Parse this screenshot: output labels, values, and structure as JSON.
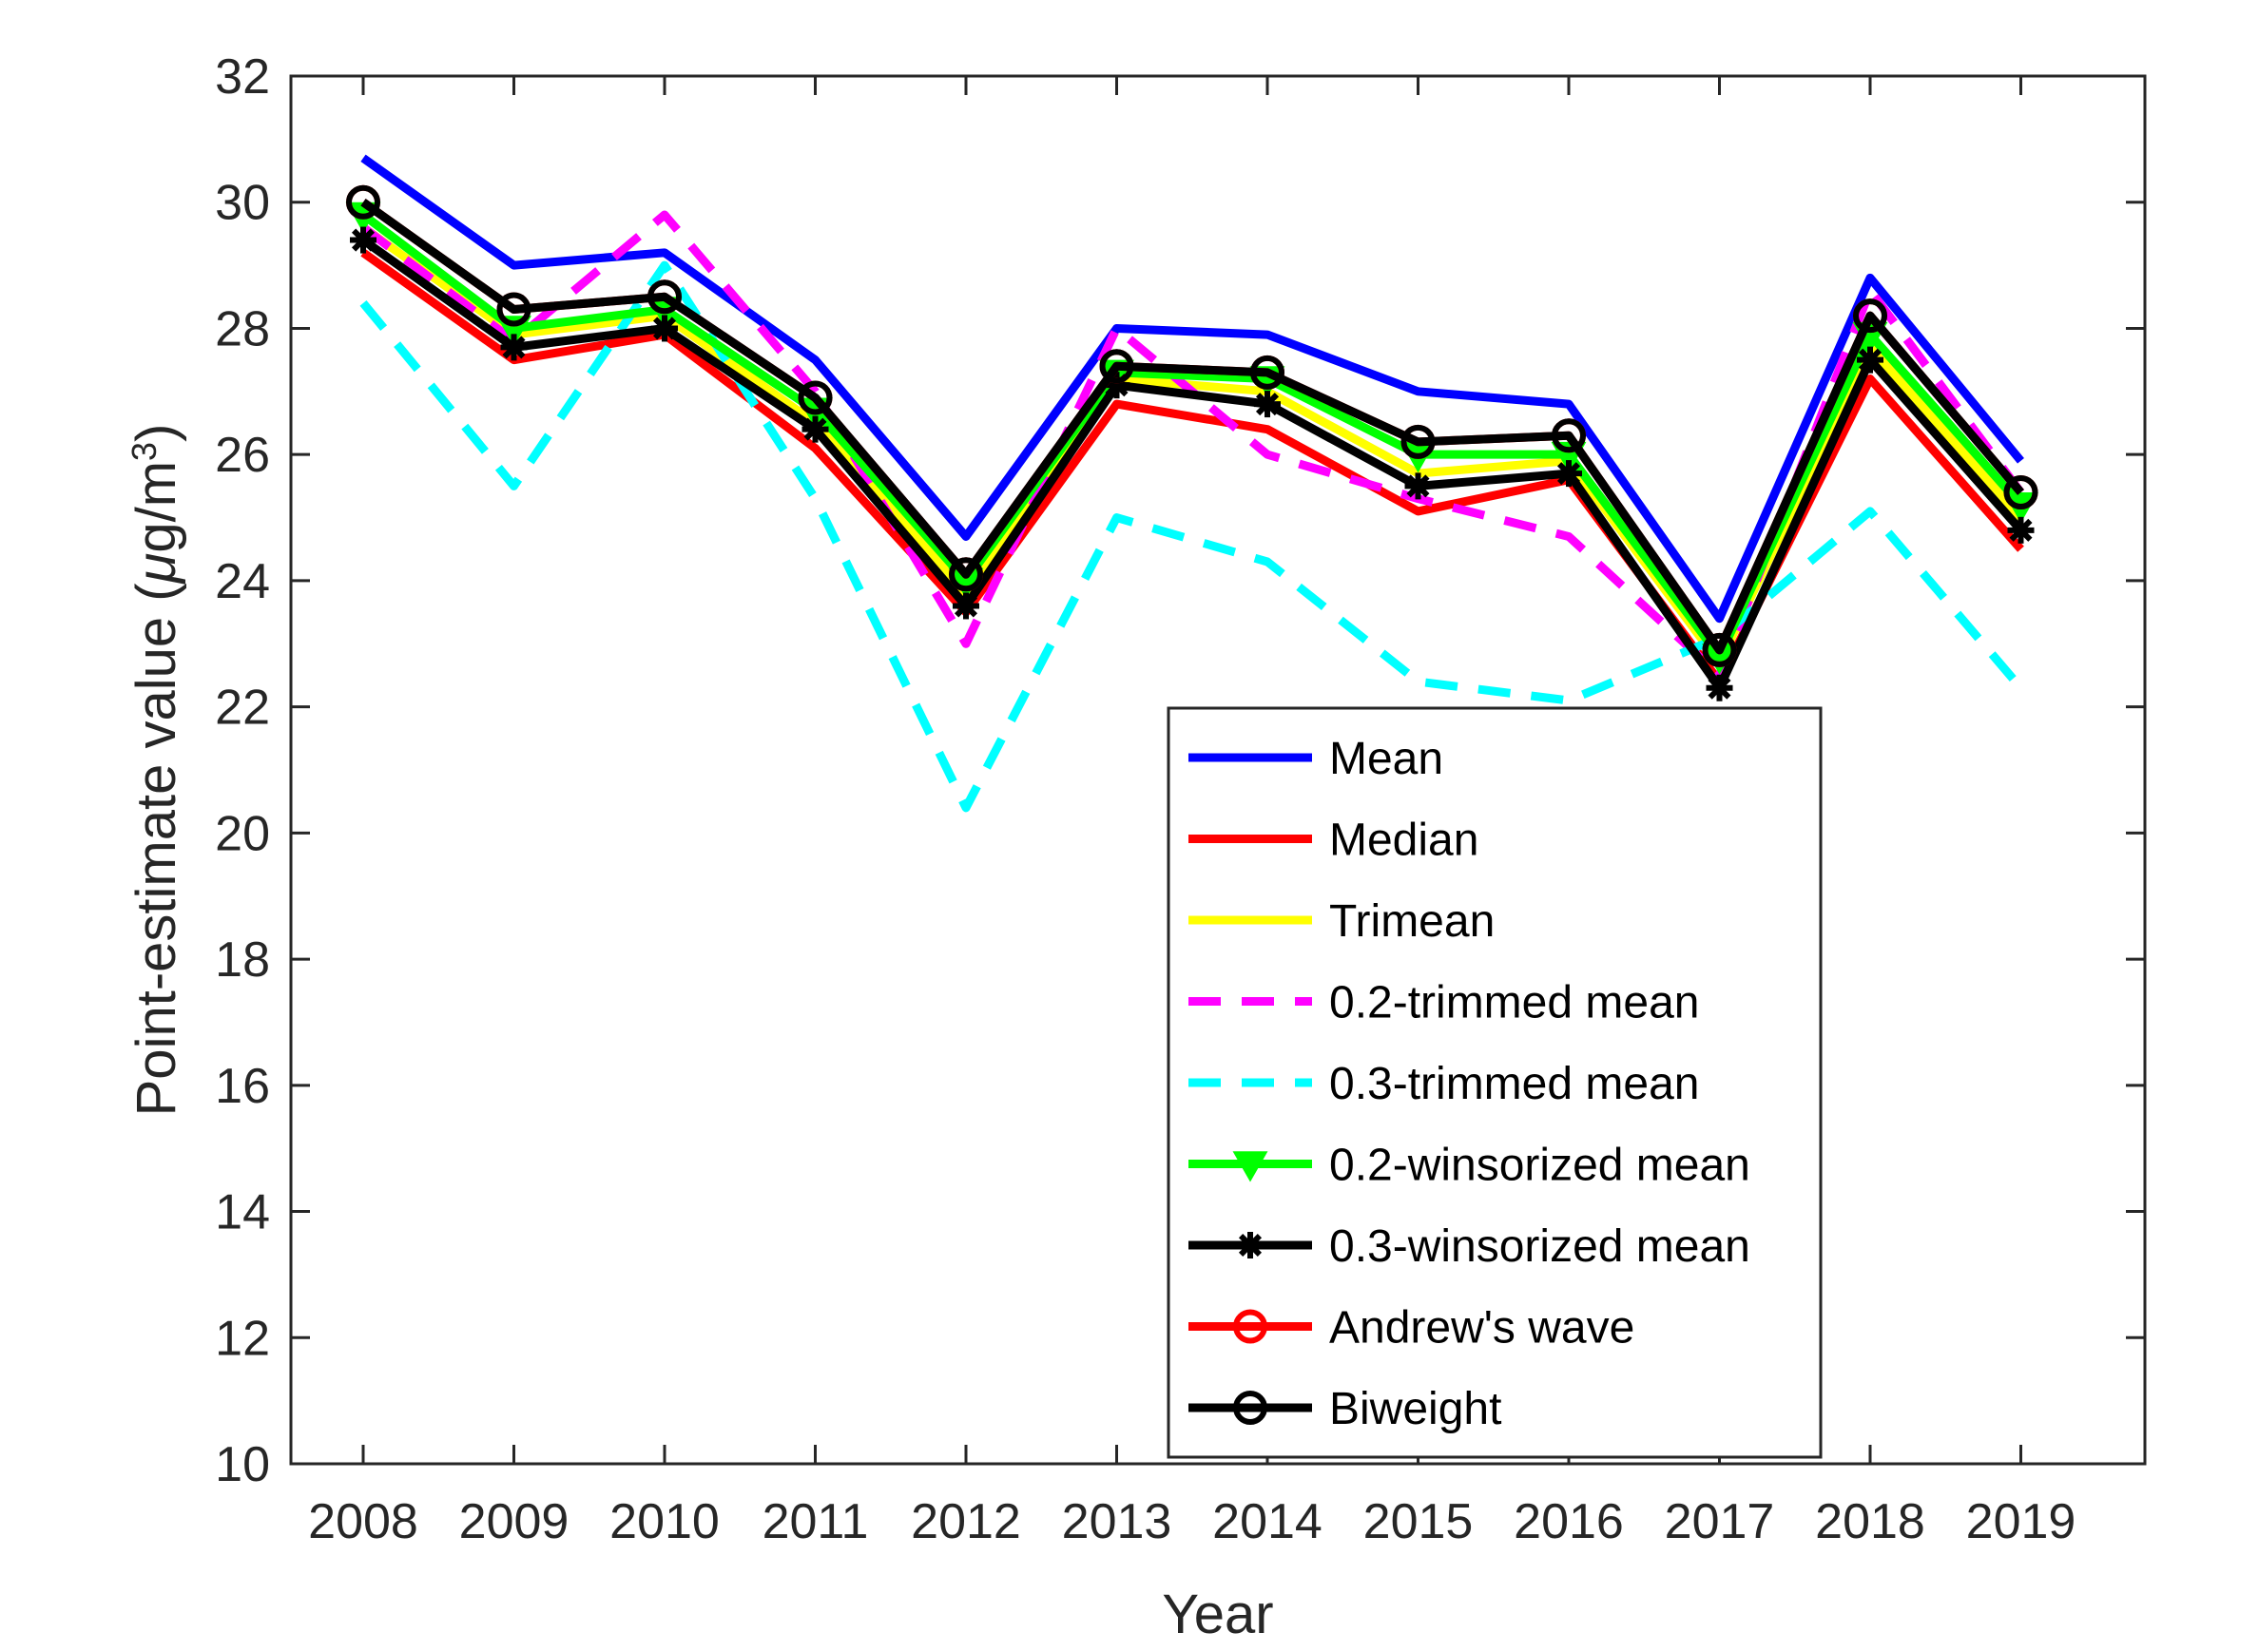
{
  "chart_data": {
    "type": "line",
    "title": "",
    "xlabel": "Year",
    "ylabel": "Point-estimate value (μg/m³)",
    "ylabel_parts": {
      "prefix": "Point-estimate value (",
      "mu": "μ",
      "unit": "g/m",
      "superscript": "3",
      "suffix": ")"
    },
    "ylim": [
      10,
      32
    ],
    "yticks": [
      "10",
      "12",
      "14",
      "16",
      "18",
      "20",
      "22",
      "24",
      "26",
      "28",
      "30",
      "32"
    ],
    "categories": [
      "2008",
      "2009",
      "2010",
      "2011",
      "2012",
      "2013",
      "2014",
      "2015",
      "2016",
      "2017",
      "2018",
      "2019"
    ],
    "legend_position": "bottom-right",
    "series": [
      {
        "name": "Mean",
        "color": "#0000ff",
        "dash": "solid",
        "marker": "none",
        "values": [
          30.7,
          29.0,
          29.2,
          27.5,
          24.7,
          28.0,
          27.9,
          27.0,
          26.8,
          23.4,
          28.8,
          25.9
        ]
      },
      {
        "name": "Median",
        "color": "#ff0000",
        "dash": "solid",
        "marker": "none",
        "values": [
          29.2,
          27.5,
          27.9,
          26.1,
          23.5,
          26.8,
          26.4,
          25.1,
          25.6,
          22.4,
          27.2,
          24.5
        ]
      },
      {
        "name": "Trimean",
        "color": "#ffff00",
        "dash": "solid",
        "marker": "none",
        "values": [
          29.6,
          27.9,
          28.2,
          26.5,
          23.8,
          27.2,
          27.0,
          25.7,
          25.9,
          22.7,
          27.7,
          25.0
        ]
      },
      {
        "name": "0.2-trimmed mean",
        "color": "#ff00ff",
        "dash": "dashed",
        "marker": "none",
        "values": [
          29.6,
          27.8,
          29.8,
          27.0,
          23.0,
          28.0,
          26.0,
          25.3,
          24.7,
          22.5,
          28.6,
          25.4
        ]
      },
      {
        "name": "0.3-trimmed mean",
        "color": "#00ffff",
        "dash": "dashed",
        "marker": "none",
        "values": [
          28.4,
          25.5,
          29.0,
          25.3,
          20.4,
          25.0,
          24.3,
          22.4,
          22.1,
          23.1,
          25.1,
          22.3
        ]
      },
      {
        "name": "0.2-winsorized mean",
        "color": "#00ff00",
        "dash": "solid",
        "marker": "triangle-down",
        "values": [
          29.8,
          28.0,
          28.3,
          26.7,
          24.0,
          27.3,
          27.2,
          26.0,
          26.0,
          22.8,
          27.9,
          25.2
        ]
      },
      {
        "name": "0.3-winsorized mean",
        "color": "#000000",
        "dash": "solid",
        "marker": "star",
        "values": [
          29.4,
          27.7,
          28.0,
          26.4,
          23.6,
          27.1,
          26.8,
          25.5,
          25.7,
          22.3,
          27.5,
          24.8
        ]
      },
      {
        "name": "Andrew's wave",
        "color": "#ff0000",
        "dash": "solid",
        "marker": "circle",
        "values": [
          30.0,
          28.3,
          28.5,
          26.9,
          24.1,
          27.4,
          27.3,
          26.2,
          26.3,
          22.9,
          28.2,
          25.4
        ]
      },
      {
        "name": "Biweight",
        "color": "#000000",
        "dash": "solid",
        "marker": "circle",
        "values": [
          30.0,
          28.3,
          28.5,
          26.9,
          24.1,
          27.4,
          27.3,
          26.2,
          26.3,
          22.9,
          28.2,
          25.4
        ]
      }
    ]
  }
}
